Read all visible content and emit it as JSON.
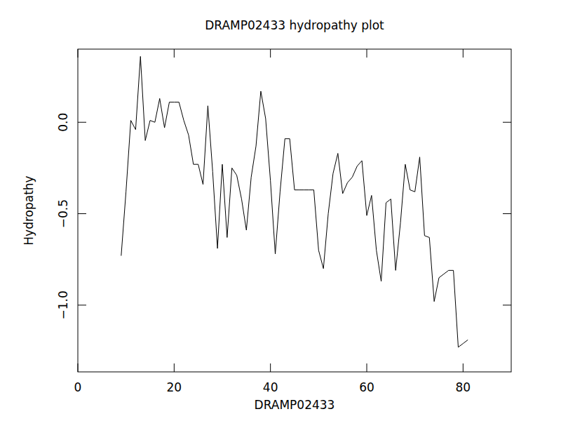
{
  "chart_data": {
    "type": "line",
    "title": "DRAMP02433 hydropathy plot",
    "x_label": "DRAMP02433",
    "y_label": "Hydropathy",
    "x": [
      9,
      10,
      11,
      12,
      13,
      14,
      15,
      16,
      17,
      18,
      19,
      20,
      21,
      22,
      23,
      24,
      25,
      26,
      27,
      28,
      29,
      30,
      31,
      32,
      33,
      34,
      35,
      36,
      37,
      38,
      39,
      40,
      41,
      42,
      43,
      44,
      45,
      46,
      47,
      48,
      49,
      50,
      51,
      52,
      53,
      54,
      55,
      56,
      57,
      58,
      59,
      60,
      61,
      62,
      63,
      64,
      65,
      66,
      67,
      68,
      69,
      70,
      71,
      72,
      73,
      74,
      75,
      76,
      77,
      78,
      79,
      80,
      81
    ],
    "values": [
      -0.73,
      -0.38,
      0.01,
      -0.04,
      0.36,
      -0.1,
      0.01,
      0.0,
      0.13,
      -0.03,
      0.11,
      0.11,
      0.11,
      0.01,
      -0.07,
      -0.23,
      -0.23,
      -0.34,
      0.09,
      -0.27,
      -0.69,
      -0.23,
      -0.63,
      -0.25,
      -0.29,
      -0.42,
      -0.59,
      -0.3,
      -0.13,
      0.17,
      0.02,
      -0.32,
      -0.72,
      -0.38,
      -0.09,
      -0.09,
      -0.37,
      -0.37,
      -0.37,
      -0.37,
      -0.37,
      -0.7,
      -0.8,
      -0.5,
      -0.28,
      -0.17,
      -0.39,
      -0.33,
      -0.3,
      -0.24,
      -0.21,
      -0.51,
      -0.4,
      -0.7,
      -0.87,
      -0.44,
      -0.42,
      -0.81,
      -0.55,
      -0.23,
      -0.37,
      -0.38,
      -0.19,
      -0.62,
      -0.63,
      -0.98,
      -0.85,
      -0.83,
      -0.81,
      -0.81,
      -1.23,
      -1.21,
      -1.19
    ],
    "color": "#000000",
    "xlim": [
      0,
      90
    ],
    "xticks": [
      0,
      20,
      40,
      60,
      80
    ],
    "ylim": [
      -1.365,
      0.4
    ],
    "yticks": [
      {
        "value": -1.0,
        "label": "−1.0"
      },
      {
        "value": -0.5,
        "label": "−0.5"
      },
      {
        "value": 0,
        "label": "0.0"
      }
    ],
    "grid": false
  }
}
